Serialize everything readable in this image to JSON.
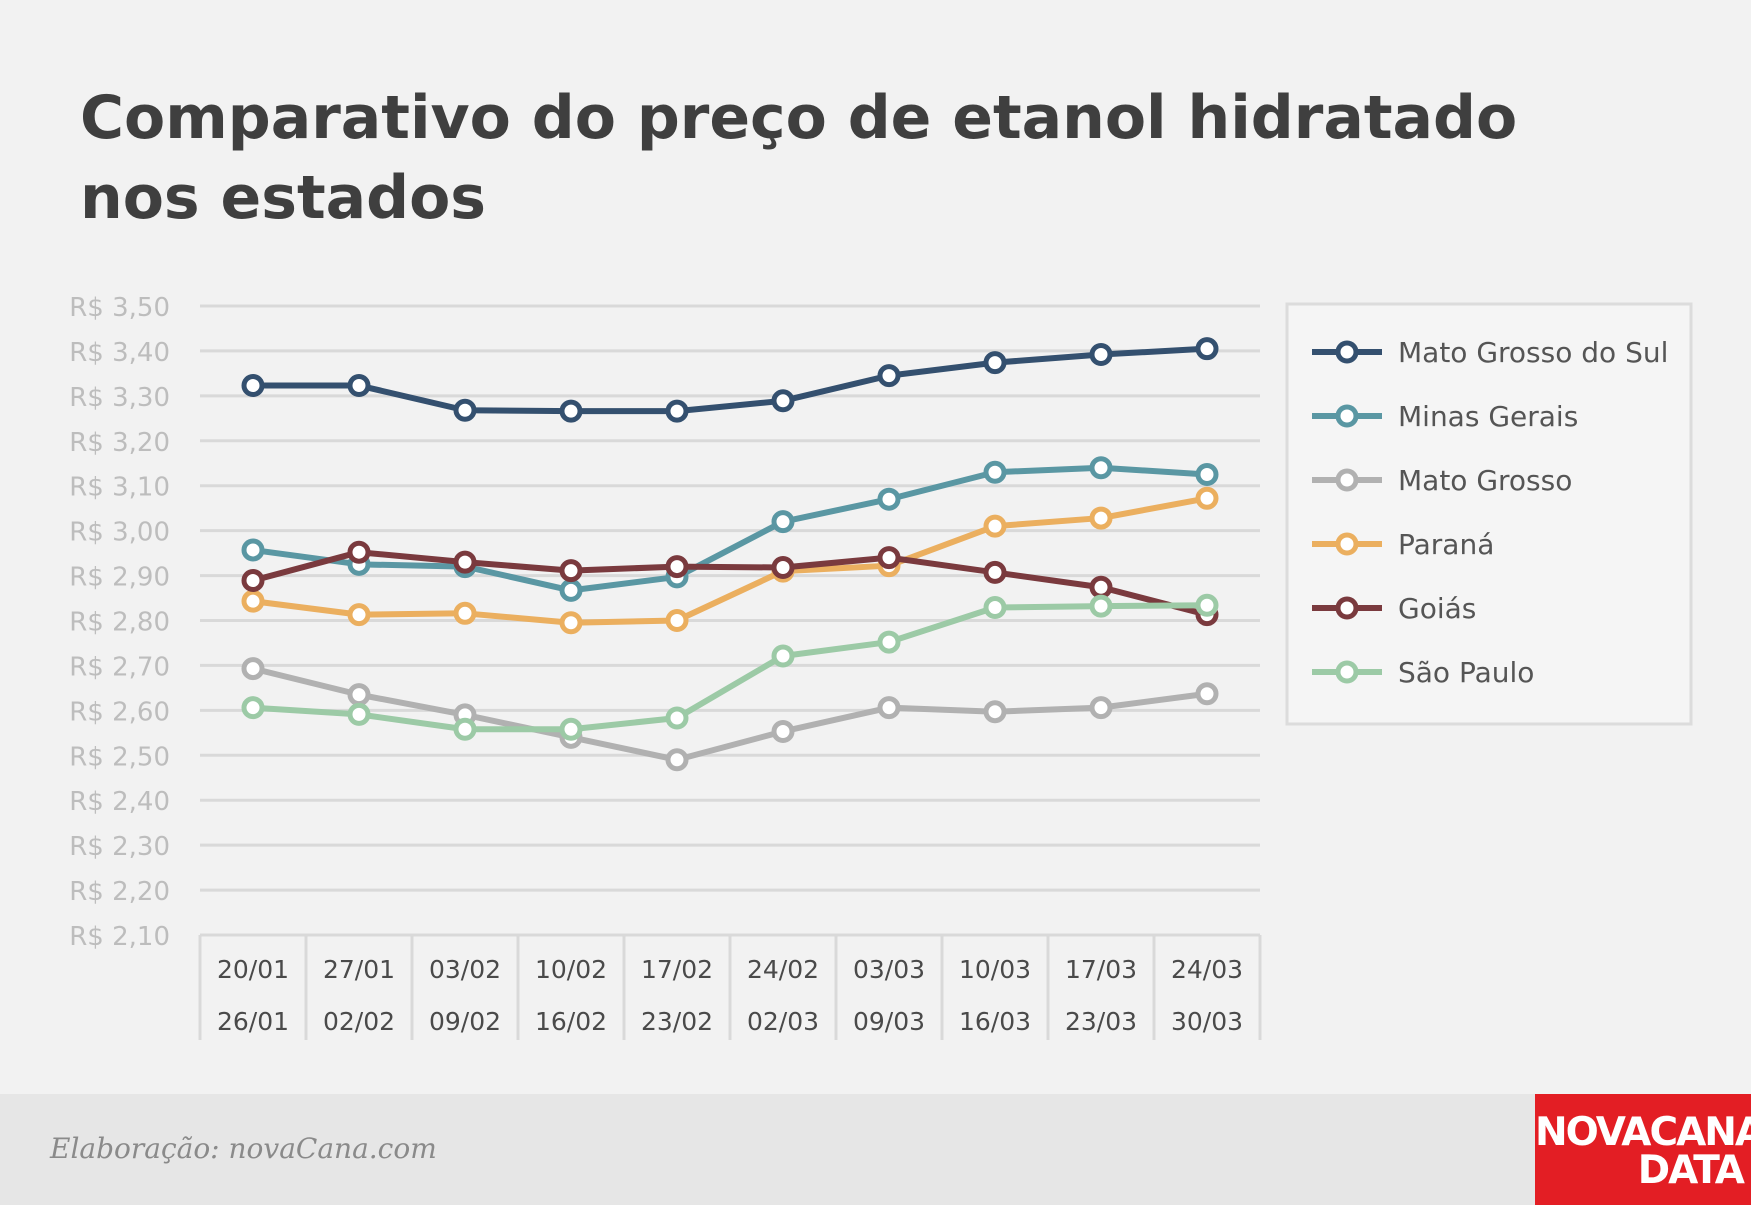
{
  "title_line1": "Comparativo do preço de etanol hidratado",
  "title_line2": "nos estados",
  "credit": "Elaboração: novaCana.com",
  "logo_line1": "NOVACANA",
  "logo_line2": "DATA",
  "colors": {
    "background": "#f2f2f2",
    "grid": "#d9d9d9",
    "tick_label": "#bdbdbd",
    "footer": "#e6e6e6",
    "logo": "#e31e24"
  },
  "chart_data": {
    "type": "line",
    "title": "Comparativo do preço de etanol hidratado nos estados",
    "ylim": [
      2.1,
      3.5
    ],
    "yticks": [
      "R$ 3,50",
      "R$ 3,40",
      "R$ 3,30",
      "R$ 3,20",
      "R$ 3,10",
      "R$ 3,00",
      "R$ 2,90",
      "R$ 2,80",
      "R$ 2,70",
      "R$ 2,60",
      "R$ 2,50",
      "R$ 2,40",
      "R$ 2,30",
      "R$ 2,20",
      "R$ 2,10"
    ],
    "ytick_values": [
      3.5,
      3.4,
      3.3,
      3.2,
      3.1,
      3.0,
      2.9,
      2.8,
      2.7,
      2.6,
      2.5,
      2.4,
      2.3,
      2.2,
      2.1
    ],
    "categories": [
      [
        "20/01",
        "26/01"
      ],
      [
        "27/01",
        "02/02"
      ],
      [
        "03/02",
        "09/02"
      ],
      [
        "10/02",
        "16/02"
      ],
      [
        "17/02",
        "23/02"
      ],
      [
        "24/02",
        "02/03"
      ],
      [
        "03/03",
        "09/03"
      ],
      [
        "10/03",
        "16/03"
      ],
      [
        "17/03",
        "23/03"
      ],
      [
        "24/03",
        "30/03"
      ]
    ],
    "grid": true,
    "legend_position": "right",
    "series": [
      {
        "name": "Mato Grosso do Sul",
        "color": "#34506f",
        "values": [
          3.323,
          3.323,
          3.268,
          3.266,
          3.266,
          3.289,
          3.345,
          3.374,
          3.392,
          3.405
        ]
      },
      {
        "name": "Minas Gerais",
        "color": "#5a97a3",
        "values": [
          2.957,
          2.925,
          2.92,
          2.867,
          2.897,
          3.02,
          3.07,
          3.13,
          3.14,
          3.125
        ]
      },
      {
        "name": "Mato Grosso",
        "color": "#b1b1b1",
        "values": [
          2.693,
          2.635,
          2.59,
          2.54,
          2.49,
          2.553,
          2.606,
          2.597,
          2.606,
          2.637
        ]
      },
      {
        "name": "Paraná",
        "color": "#ebaf5f",
        "values": [
          2.843,
          2.813,
          2.816,
          2.795,
          2.8,
          2.91,
          2.922,
          3.01,
          3.028,
          3.072
        ]
      },
      {
        "name": "Goiás",
        "color": "#7a3a3e",
        "values": [
          2.889,
          2.952,
          2.93,
          2.911,
          2.92,
          2.918,
          2.94,
          2.907,
          2.874,
          2.813
        ]
      },
      {
        "name": "São Paulo",
        "color": "#9ccaa6",
        "values": [
          2.606,
          2.591,
          2.558,
          2.558,
          2.583,
          2.721,
          2.752,
          2.829,
          2.832,
          2.834
        ]
      }
    ]
  }
}
